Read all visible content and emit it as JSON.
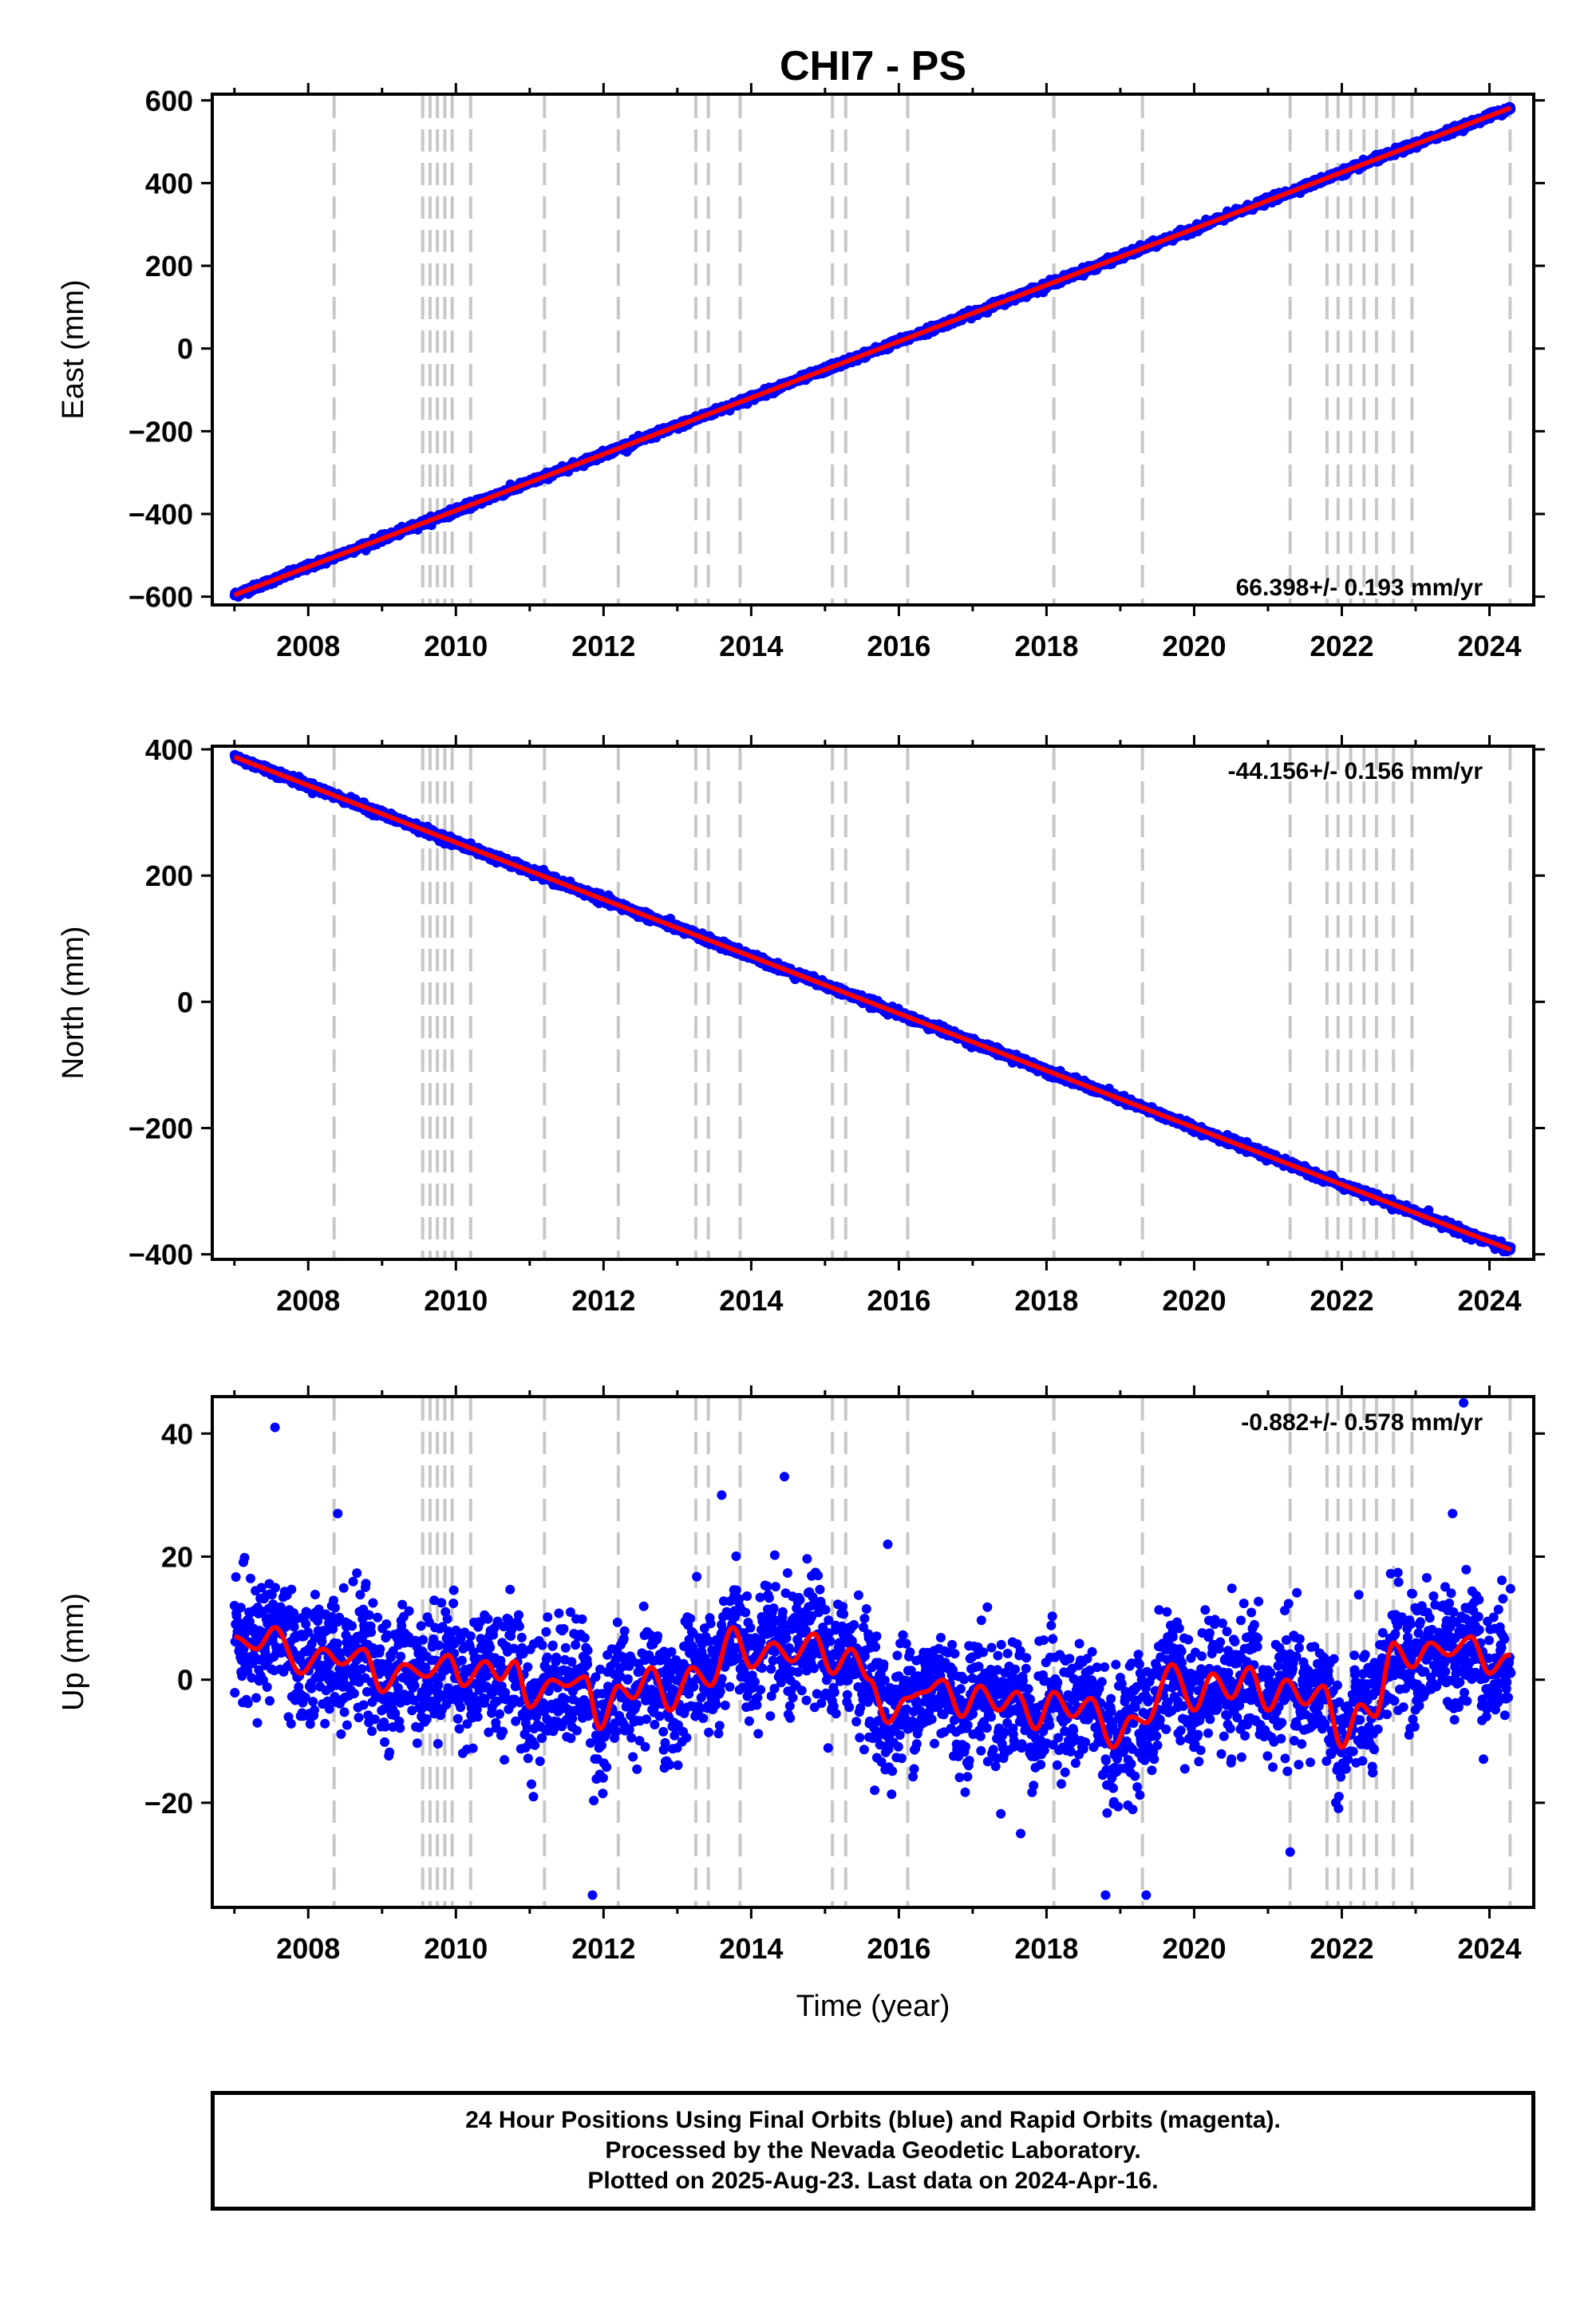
{
  "title": "CHI7 - PS",
  "footer": {
    "line1": "24 Hour Positions Using Final Orbits (blue) and Rapid Orbits (magenta).",
    "line2": "Processed by the Nevada Geodetic Laboratory.",
    "line3": "Plotted on 2025-Aug-23. Last data on 2024-Apr-16."
  },
  "colors": {
    "data": "#0000ff",
    "model": "#ff0000",
    "events": "#c8c8c8",
    "frame": "#000000"
  },
  "chart_data": [
    {
      "type": "scatter",
      "title": "",
      "xlabel": "",
      "ylabel": "East (mm)",
      "xlim": [
        2006.7,
        2024.6
      ],
      "ylim": [
        -620,
        615
      ],
      "xticks": [
        2008,
        2010,
        2012,
        2014,
        2016,
        2018,
        2020,
        2022,
        2024
      ],
      "yticks": [
        -600,
        -400,
        -200,
        0,
        200,
        400,
        600
      ],
      "ytick_labels": [
        "−600",
        "−400",
        "−200",
        "0",
        "200",
        "400",
        "600"
      ],
      "rate_label": "66.398+/- 0.193 mm/yr",
      "grid": false,
      "series": [
        {
          "values_desc": "daily positions",
          "trend": {
            "start": [
              2007.0,
              -596
            ],
            "end": [
              2024.29,
              582
            ]
          },
          "noise_mm": 4
        }
      ]
    },
    {
      "type": "scatter",
      "title": "",
      "xlabel": "",
      "ylabel": "North (mm)",
      "xlim": [
        2006.7,
        2024.6
      ],
      "ylim": [
        -408,
        405
      ],
      "xticks": [
        2008,
        2010,
        2012,
        2014,
        2016,
        2018,
        2020,
        2022,
        2024
      ],
      "yticks": [
        -400,
        -200,
        0,
        200,
        400
      ],
      "ytick_labels": [
        "−400",
        "−200",
        "0",
        "200",
        "400"
      ],
      "rate_label": "-44.156+/- 0.156 mm/yr",
      "grid": false,
      "series": [
        {
          "values_desc": "daily positions",
          "trend": {
            "start": [
              2007.0,
              388
            ],
            "end": [
              2024.29,
              -393
            ]
          },
          "noise_mm": 3
        }
      ]
    },
    {
      "type": "scatter",
      "title": "",
      "xlabel": "Time (year)",
      "ylabel": "Up (mm)",
      "xlim": [
        2006.7,
        2024.6
      ],
      "ylim": [
        -37,
        46
      ],
      "xticks": [
        2008,
        2010,
        2012,
        2014,
        2016,
        2018,
        2020,
        2022,
        2024
      ],
      "yticks": [
        -20,
        0,
        20,
        40
      ],
      "ytick_labels": [
        "−20",
        "0",
        "20",
        "40"
      ],
      "rate_label": "-0.882+/- 0.578 mm/yr",
      "grid": false,
      "model_curve": [
        [
          2007.0,
          7
        ],
        [
          2007.3,
          5
        ],
        [
          2007.55,
          8.5
        ],
        [
          2007.9,
          1
        ],
        [
          2008.2,
          5
        ],
        [
          2008.45,
          2.5
        ],
        [
          2008.75,
          5
        ],
        [
          2009.0,
          -2
        ],
        [
          2009.3,
          2.5
        ],
        [
          2009.6,
          0.5
        ],
        [
          2009.9,
          4
        ],
        [
          2010.1,
          -1
        ],
        [
          2010.4,
          3
        ],
        [
          2010.6,
          0
        ],
        [
          2010.8,
          3
        ],
        [
          2011.0,
          -4.5
        ],
        [
          2011.3,
          0
        ],
        [
          2011.5,
          -1
        ],
        [
          2011.75,
          0.5
        ],
        [
          2011.95,
          -8
        ],
        [
          2012.2,
          -1
        ],
        [
          2012.4,
          -3
        ],
        [
          2012.65,
          2
        ],
        [
          2012.9,
          -5
        ],
        [
          2013.2,
          2
        ],
        [
          2013.45,
          -1
        ],
        [
          2013.75,
          8.5
        ],
        [
          2014.0,
          2
        ],
        [
          2014.3,
          6
        ],
        [
          2014.55,
          3
        ],
        [
          2014.85,
          7.5
        ],
        [
          2015.1,
          1
        ],
        [
          2015.35,
          5
        ],
        [
          2015.6,
          0
        ],
        [
          2015.85,
          -7
        ],
        [
          2016.1,
          -3
        ],
        [
          2016.35,
          -2
        ],
        [
          2016.6,
          0
        ],
        [
          2016.85,
          -6
        ],
        [
          2017.1,
          -1
        ],
        [
          2017.35,
          -5
        ],
        [
          2017.6,
          -2
        ],
        [
          2017.85,
          -8
        ],
        [
          2018.1,
          -2
        ],
        [
          2018.35,
          -6
        ],
        [
          2018.6,
          -3
        ],
        [
          2018.9,
          -11
        ],
        [
          2019.15,
          -6
        ],
        [
          2019.35,
          -7
        ],
        [
          2019.7,
          2.5
        ],
        [
          2020.0,
          -5
        ],
        [
          2020.25,
          1
        ],
        [
          2020.5,
          -3
        ],
        [
          2020.75,
          2
        ],
        [
          2021.0,
          -5
        ],
        [
          2021.25,
          0
        ],
        [
          2021.5,
          -4
        ],
        [
          2021.75,
          -1
        ],
        [
          2022.0,
          -11
        ],
        [
          2022.25,
          -4
        ],
        [
          2022.45,
          -6
        ],
        [
          2022.7,
          6
        ],
        [
          2022.95,
          2
        ],
        [
          2023.2,
          6
        ],
        [
          2023.45,
          4
        ],
        [
          2023.75,
          7
        ],
        [
          2024.0,
          1
        ],
        [
          2024.25,
          4
        ]
      ],
      "series": [
        {
          "values_desc": "daily positions",
          "noise_mm": 5
        }
      ]
    }
  ],
  "events": [
    2008.35,
    2009.55,
    2009.65,
    2009.75,
    2009.85,
    2009.95,
    2010.2,
    2011.2,
    2012.2,
    2013.25,
    2013.42,
    2013.85,
    2015.1,
    2015.28,
    2016.12,
    2018.1,
    2019.3,
    2021.3,
    2021.8,
    2021.95,
    2022.12,
    2022.3,
    2022.47,
    2022.7,
    2022.95,
    2024.28
  ],
  "outliers_up": [
    [
      2007.55,
      41
    ],
    [
      2008.4,
      27
    ],
    [
      2011.05,
      -19
    ],
    [
      2011.85,
      -35
    ],
    [
      2013.6,
      30
    ],
    [
      2014.45,
      33
    ],
    [
      2015.85,
      22
    ],
    [
      2017.65,
      -25
    ],
    [
      2018.8,
      -35
    ],
    [
      2019.35,
      -35
    ],
    [
      2021.3,
      -28
    ],
    [
      2023.5,
      27
    ],
    [
      2023.65,
      45
    ]
  ]
}
